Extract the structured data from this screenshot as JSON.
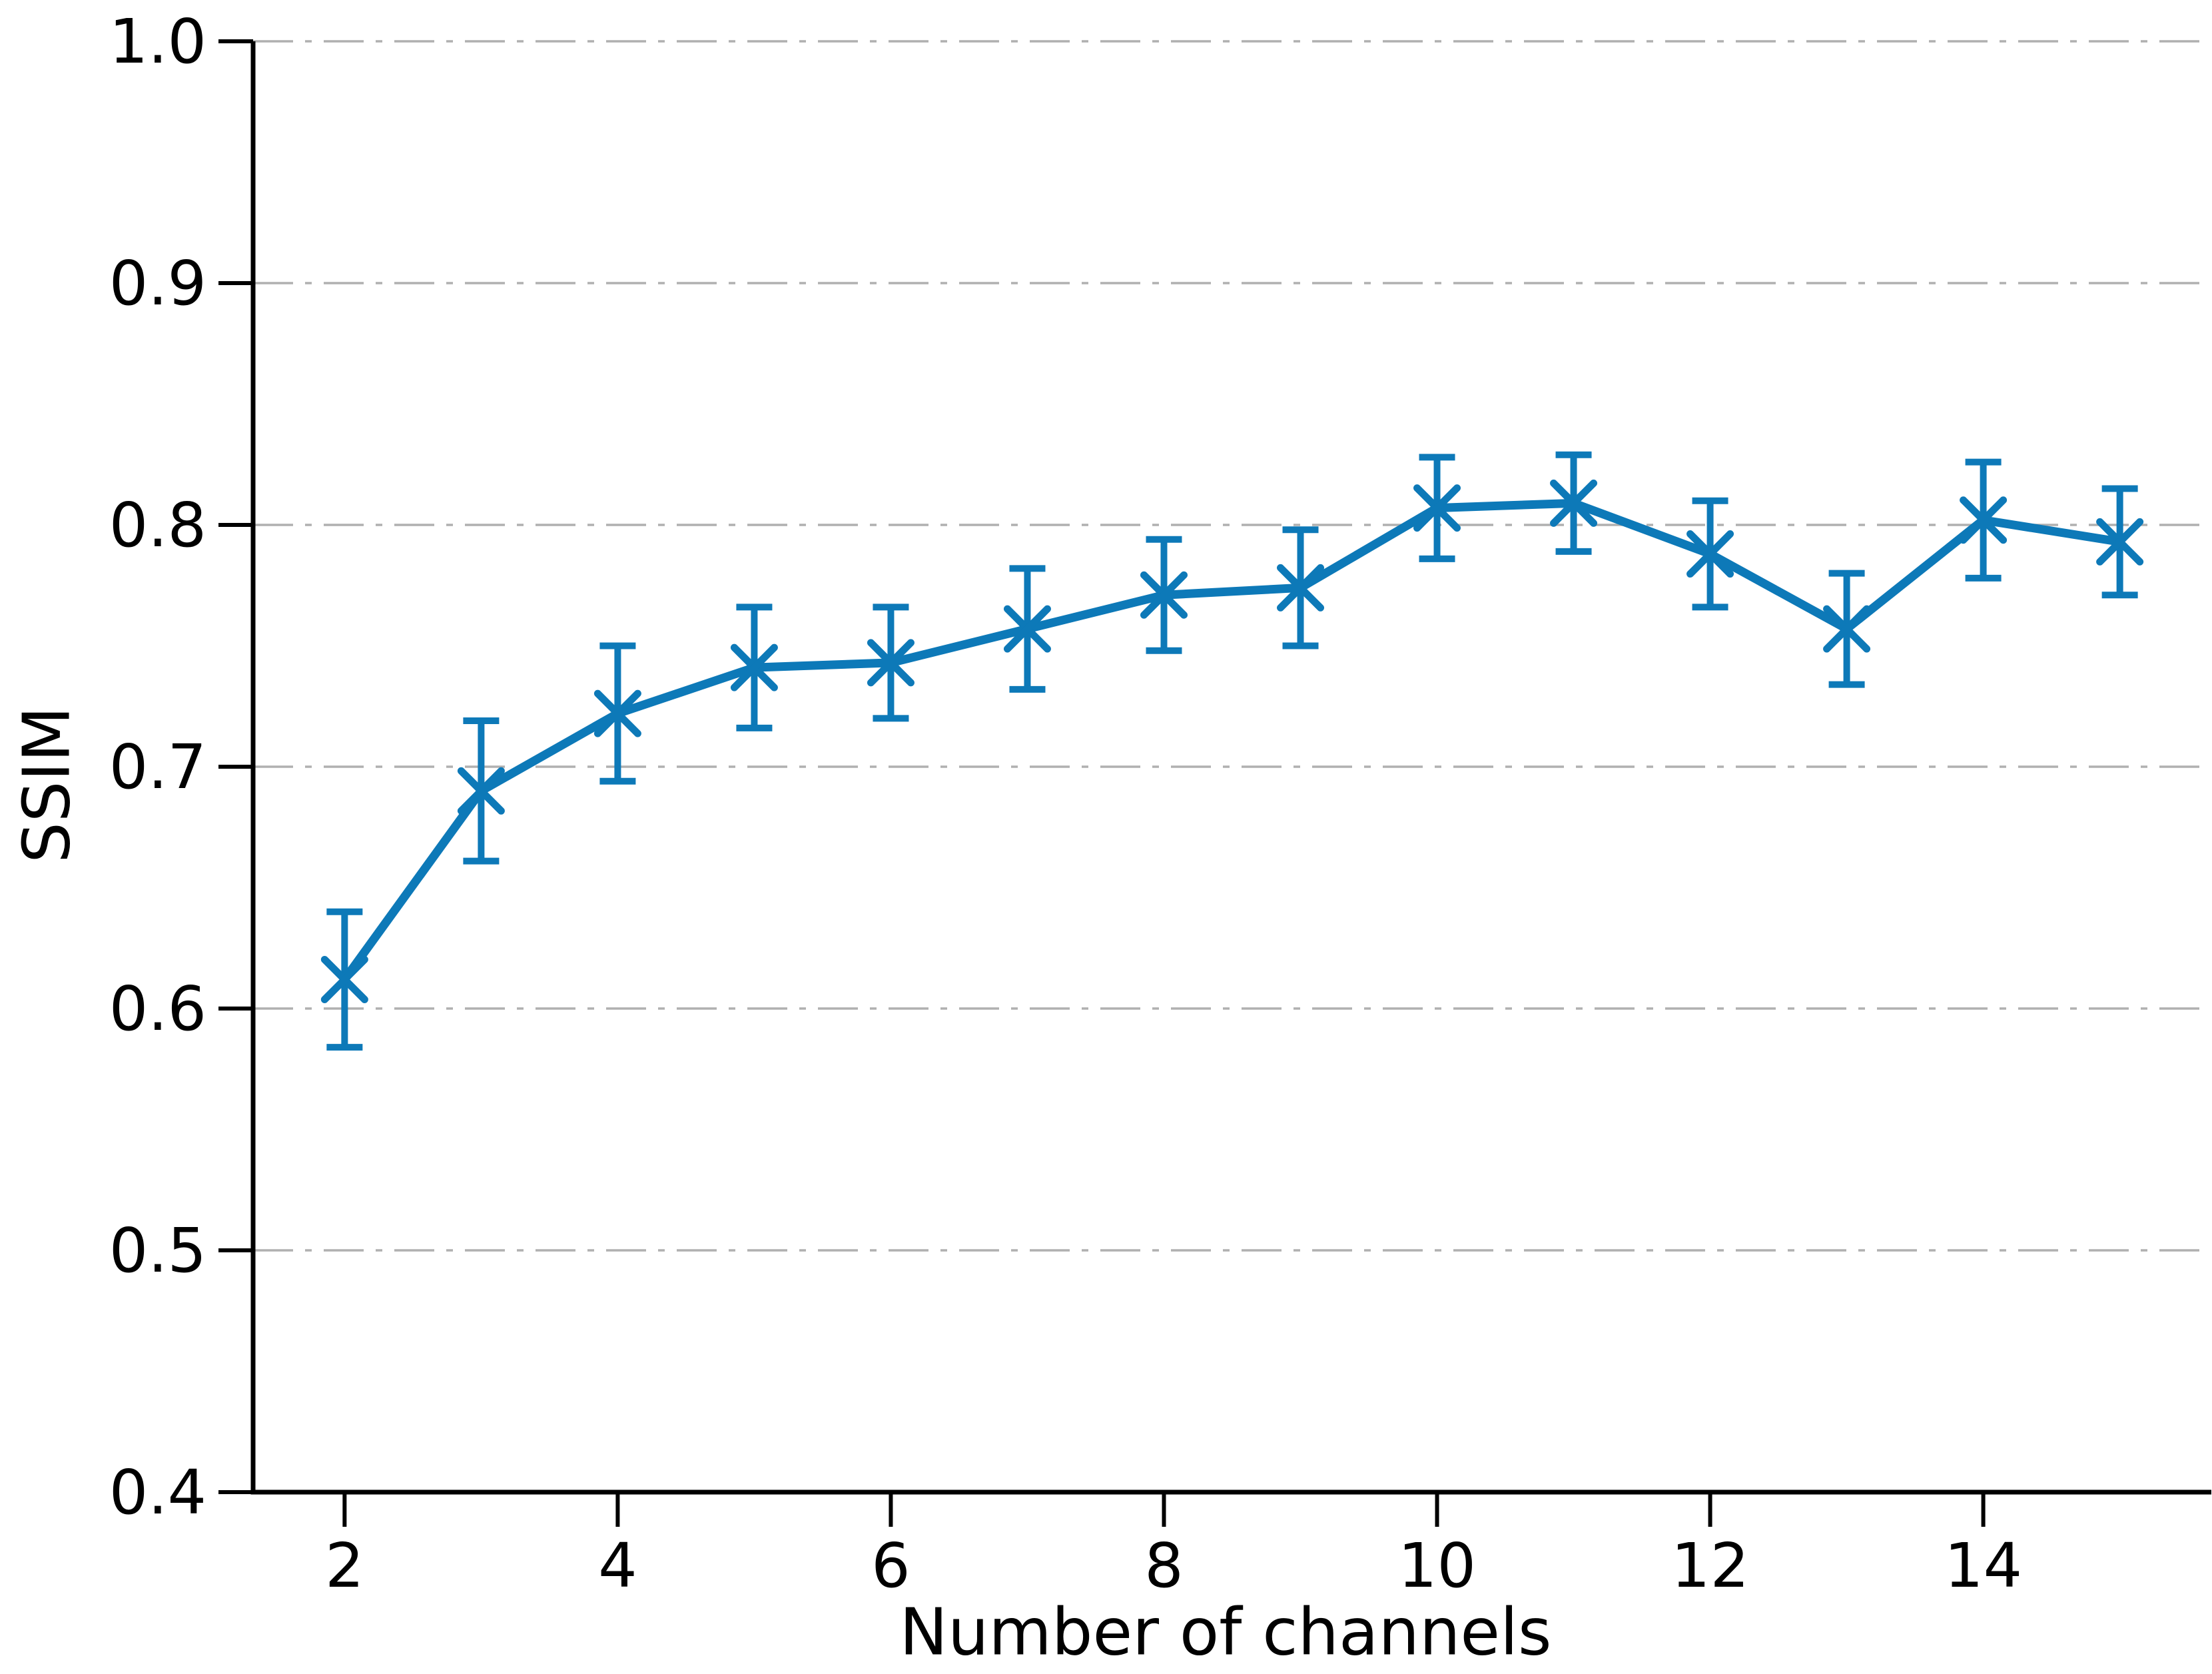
{
  "figure": {
    "background": "#ffffff",
    "text_color": "#000000",
    "spine_color": "#000000"
  },
  "chart_data": {
    "type": "line",
    "title": "",
    "xlabel": "Number of channels",
    "ylabel": "SSIM",
    "x": [
      2,
      3,
      4,
      5,
      6,
      7,
      8,
      9,
      10,
      11,
      12,
      13,
      14,
      15
    ],
    "series": [
      {
        "name": "SSIM",
        "values": [
          0.612,
          0.69,
          0.722,
          0.741,
          0.743,
          0.757,
          0.771,
          0.774,
          0.807,
          0.809,
          0.788,
          0.757,
          0.802,
          0.793
        ],
        "errors": [
          0.028,
          0.029,
          0.028,
          0.025,
          0.023,
          0.025,
          0.023,
          0.024,
          0.021,
          0.02,
          0.022,
          0.023,
          0.024,
          0.022
        ],
        "color": "#0d79b8",
        "marker": "x"
      }
    ],
    "xticks": [
      2,
      4,
      6,
      8,
      10,
      12,
      14
    ],
    "yticks": [
      0.4,
      0.5,
      0.6,
      0.7,
      0.8,
      0.9,
      1.0
    ],
    "ytick_labels": [
      "0.4",
      "0.5",
      "0.6",
      "0.7",
      "0.8",
      "0.9",
      "1.0"
    ],
    "xlim": [
      1.33,
      15.67
    ],
    "ylim": [
      0.4,
      1.0
    ],
    "grid": true,
    "grid_style": "dash-dot",
    "grid_color": "#b0b0b0",
    "legend": "none"
  }
}
